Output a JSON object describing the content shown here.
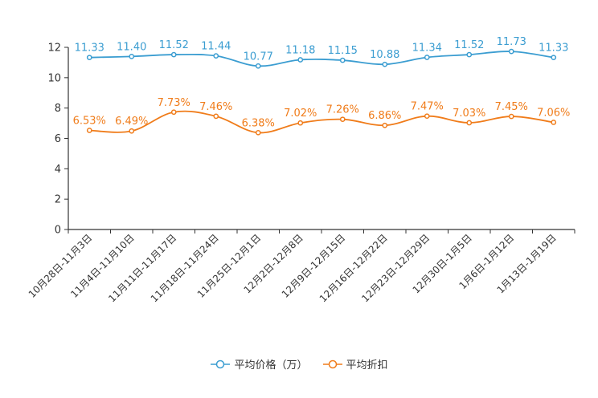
{
  "chart_data": {
    "type": "line",
    "title": "",
    "xlabel": "",
    "ylabel": "",
    "ylim": [
      0,
      12
    ],
    "yticks": [
      0,
      2,
      4,
      6,
      8,
      10,
      12
    ],
    "ytick_labels": [
      "0",
      "2",
      "4",
      "6",
      "8",
      "10",
      "12"
    ],
    "grid": false,
    "legend_position": "bottom-center",
    "categories": [
      "10月28日-11月3日",
      "11月4日-11月10日",
      "11月11日-11月17日",
      "11月18日-11月24日",
      "11月25日-12月1日",
      "12月2日-12月8日",
      "12月9日-12月15日",
      "12月16日-12月22日",
      "12月23日-12月29日",
      "12月30日-1月5日",
      "1月6日-1月12日",
      "1月13日-1月19日"
    ],
    "series": [
      {
        "name": "平均价格（万）",
        "color": "#3b9dd1",
        "values": [
          11.33,
          11.4,
          11.52,
          11.44,
          10.77,
          11.18,
          11.15,
          10.88,
          11.34,
          11.52,
          11.73,
          11.33
        ],
        "labels": [
          "11.33",
          "11.40",
          "11.52",
          "11.44",
          "10.77",
          "11.18",
          "11.15",
          "10.88",
          "11.34",
          "11.52",
          "11.73",
          "11.33"
        ]
      },
      {
        "name": "平均折扣",
        "color": "#f07c1a",
        "values": [
          6.53,
          6.49,
          7.73,
          7.46,
          6.38,
          7.02,
          7.26,
          6.86,
          7.47,
          7.03,
          7.45,
          7.06
        ],
        "labels": [
          "6.53%",
          "6.49%",
          "7.73%",
          "7.46%",
          "6.38%",
          "7.02%",
          "7.26%",
          "6.86%",
          "7.47%",
          "7.03%",
          "7.45%",
          "7.06%"
        ]
      }
    ]
  }
}
